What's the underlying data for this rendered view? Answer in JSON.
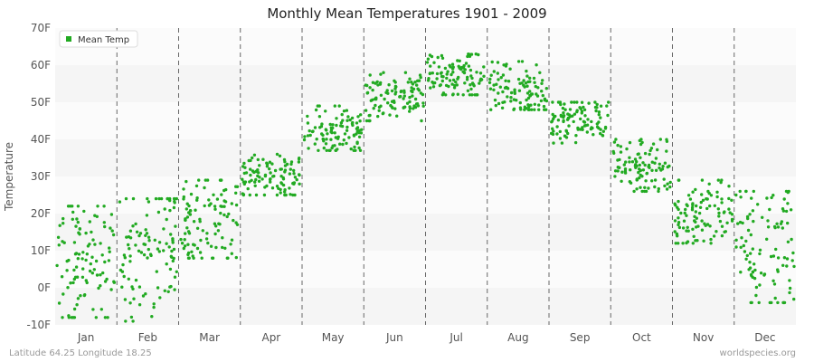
{
  "title": "Monthly Mean Temperatures 1901 - 2009",
  "footer_left": "Latitude 64.25 Longitude 18.25",
  "footer_right": "worldspecies.org",
  "chart_data": {
    "type": "scatter",
    "title": "Monthly Mean Temperatures 1901 - 2009",
    "xlabel": "",
    "ylabel": "Temperature",
    "categories": [
      "Jan",
      "Feb",
      "Mar",
      "Apr",
      "May",
      "Jun",
      "Jul",
      "Aug",
      "Sep",
      "Oct",
      "Nov",
      "Dec"
    ],
    "yticks": [
      "-10F",
      "0F",
      "10F",
      "20F",
      "30F",
      "40F",
      "50F",
      "60F",
      "70F"
    ],
    "ylim": [
      -10,
      70
    ],
    "legend": {
      "label": "Mean Temp",
      "position": "top-left"
    },
    "series_color": "#22aa22",
    "band_colors": [
      "#f5f5f5",
      "#fbfbfb"
    ],
    "series": [
      {
        "name": "Mean Temp",
        "month_ranges": [
          {
            "month": "Jan",
            "min": -8,
            "max": 22,
            "mean": 9
          },
          {
            "month": "Feb",
            "min": -9,
            "max": 24,
            "mean": 11
          },
          {
            "month": "Mar",
            "min": 8,
            "max": 29,
            "mean": 18
          },
          {
            "month": "Apr",
            "min": 25,
            "max": 36,
            "mean": 30
          },
          {
            "month": "May",
            "min": 37,
            "max": 49,
            "mean": 42
          },
          {
            "month": "Jun",
            "min": 45,
            "max": 58,
            "mean": 52
          },
          {
            "month": "Jul",
            "min": 52,
            "max": 63,
            "mean": 57
          },
          {
            "month": "Aug",
            "min": 48,
            "max": 61,
            "mean": 53
          },
          {
            "month": "Sep",
            "min": 39,
            "max": 50,
            "mean": 45
          },
          {
            "month": "Oct",
            "min": 26,
            "max": 40,
            "mean": 33
          },
          {
            "month": "Nov",
            "min": 12,
            "max": 29,
            "mean": 20
          },
          {
            "month": "Dec",
            "min": -4,
            "max": 26,
            "mean": 12
          }
        ]
      }
    ]
  }
}
